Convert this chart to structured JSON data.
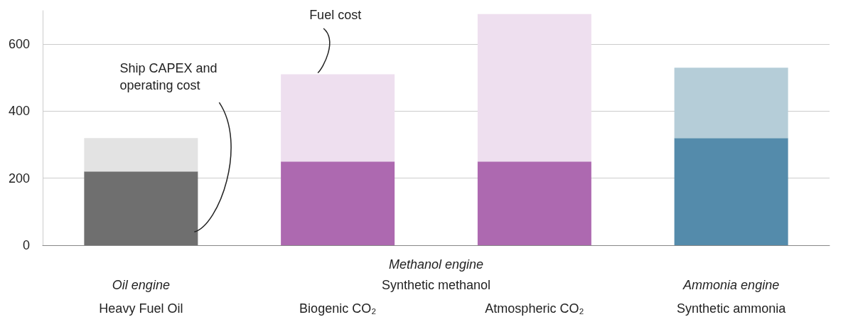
{
  "chart_data": {
    "type": "bar",
    "stacked": true,
    "categories": [
      "Heavy Fuel Oil",
      "Biogenic CO₂",
      "Atmospheric CO₂",
      "Synthetic ammonia"
    ],
    "series": [
      {
        "name": "Ship CAPEX and operating cost",
        "colors": [
          "#6f6f6f",
          "#ad69b0",
          "#ad69b0",
          "#548bab"
        ],
        "values": [
          220,
          250,
          250,
          320
        ]
      },
      {
        "name": "Fuel cost",
        "colors": [
          "#e3e3e3",
          "#eedfef",
          "#eedfef",
          "#b5cdd8"
        ],
        "values": [
          100,
          260,
          440,
          210
        ]
      }
    ],
    "annotations": [
      "Oil engine",
      "Methanol engine",
      "Synthetic methanol",
      "Ammonia engine"
    ],
    "ylim": [
      0,
      700
    ],
    "yticks": [
      0,
      200,
      400,
      600
    ],
    "grid": "y"
  }
}
